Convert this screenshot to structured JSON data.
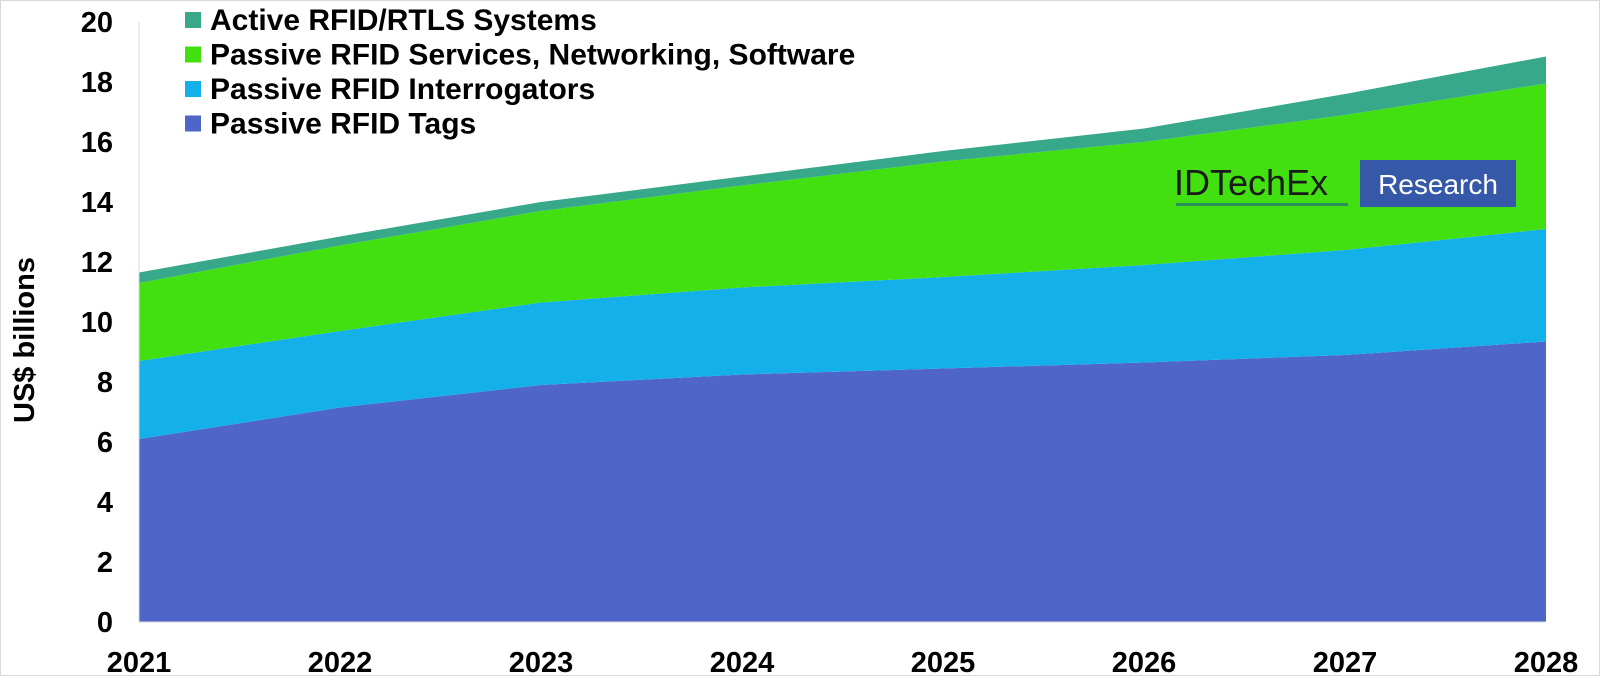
{
  "chart_data": {
    "type": "area",
    "stacked": true,
    "x": [
      "2021",
      "2022",
      "2023",
      "2024",
      "2025",
      "2026",
      "2027",
      "2028"
    ],
    "ylabel": "US$ billions",
    "xlabel": "",
    "ylim": [
      0,
      20
    ],
    "yticks": [
      0,
      2,
      4,
      6,
      8,
      10,
      12,
      14,
      16,
      18,
      20
    ],
    "grid": false,
    "legend_position": "top-left",
    "series": [
      {
        "name": "Passive RFID Tags",
        "color": "#4f65c8",
        "values": [
          6.1,
          7.15,
          7.9,
          8.25,
          8.45,
          8.65,
          8.9,
          9.35
        ]
      },
      {
        "name": "Passive RFID Interrogators",
        "color": "#14b0ea",
        "values": [
          2.6,
          2.55,
          2.75,
          2.9,
          3.05,
          3.25,
          3.5,
          3.75
        ]
      },
      {
        "name": "Passive RFID Services, Networking, Software",
        "color": "#42e010",
        "values": [
          2.6,
          2.85,
          3.05,
          3.4,
          3.85,
          4.1,
          4.5,
          4.85
        ]
      },
      {
        "name": "Active RFID/RTLS Systems",
        "color": "#37a98a",
        "values": [
          0.35,
          0.3,
          0.3,
          0.3,
          0.35,
          0.45,
          0.7,
          0.9
        ]
      }
    ],
    "legend_order": [
      "Active RFID/RTLS Systems",
      "Passive RFID Services, Networking, Software",
      "Passive RFID Interrogators",
      "Passive RFID Tags"
    ]
  },
  "logo": {
    "brand": "IDTechEx",
    "badge": "Research",
    "brand_underline_color": "#2a8f5a",
    "badge_color": "#3658a8"
  }
}
